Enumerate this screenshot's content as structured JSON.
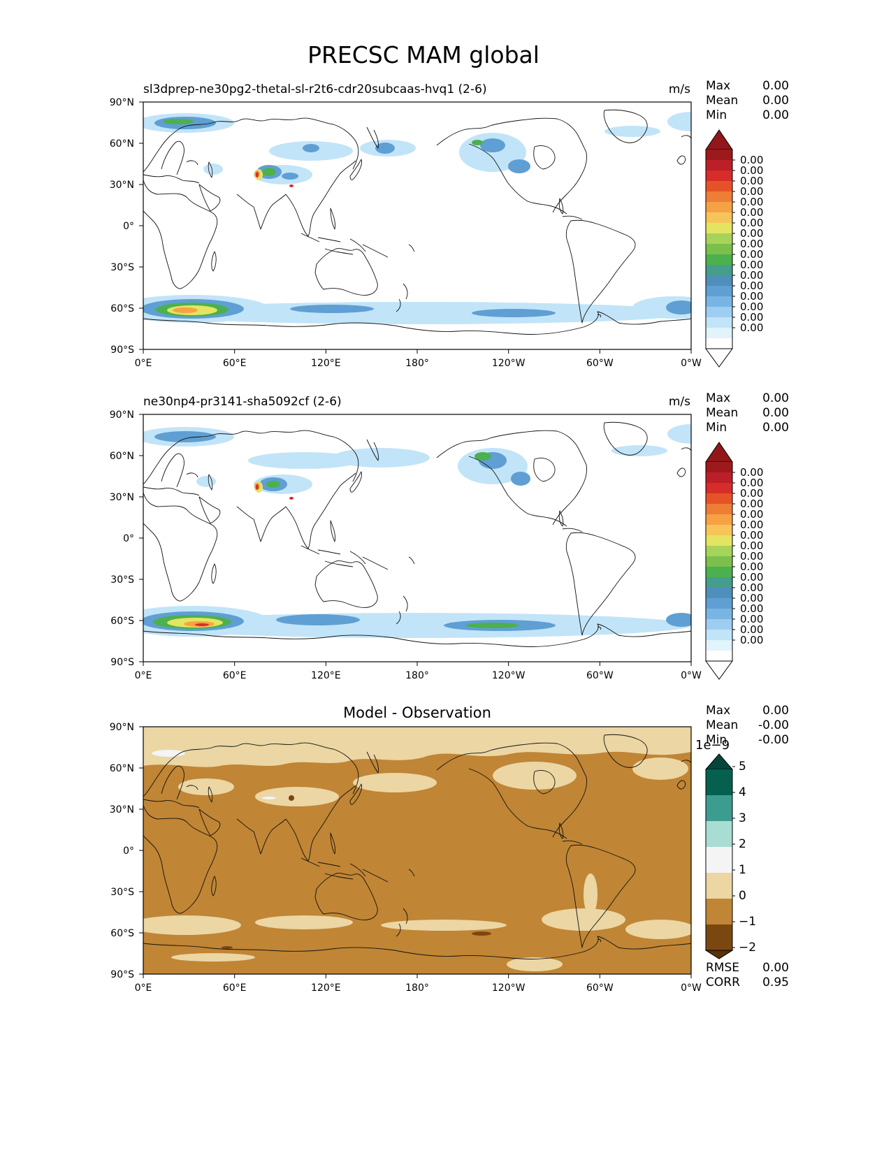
{
  "figure": {
    "title": "PRECSC MAM global"
  },
  "axis_labels": {
    "lat": [
      "90°N",
      "60°N",
      "30°N",
      "0°",
      "30°S",
      "60°S",
      "90°S"
    ],
    "lon": [
      "0°E",
      "60°E",
      "120°E",
      "180°",
      "120°W",
      "60°W",
      "0°W"
    ]
  },
  "panels": [
    {
      "id": "test",
      "title_left": "sl3dprep-ne30pg2-thetal-sl-r2t6-cdr20subcaas-hvq1 (2-6)",
      "title_right": "m/s",
      "stats": [
        {
          "label": "Max",
          "value": "0.00"
        },
        {
          "label": "Mean",
          "value": "0.00"
        },
        {
          "label": "Min",
          "value": "0.00"
        }
      ]
    },
    {
      "id": "reference",
      "title_left": "ne30np4-pr3141-sha5092cf (2-6)",
      "title_right": "m/s",
      "stats": [
        {
          "label": "Max",
          "value": "0.00"
        },
        {
          "label": "Mean",
          "value": "0.00"
        },
        {
          "label": "Min",
          "value": "0.00"
        }
      ]
    },
    {
      "id": "diff",
      "title_center": "Model - Observation",
      "stats": [
        {
          "label": "Max",
          "value": "0.00"
        },
        {
          "label": "Mean",
          "value": "-0.00"
        },
        {
          "label": "Min",
          "value": "-0.00"
        }
      ],
      "extra_stats": [
        {
          "label": "RMSE",
          "value": "0.00"
        },
        {
          "label": "CORR",
          "value": "0.95"
        }
      ]
    }
  ],
  "colorbars": {
    "precip": {
      "colors": [
        "#ffffff",
        "#e1f3fb",
        "#c2e4f8",
        "#9dcdf1",
        "#78b5e3",
        "#5f9fd3",
        "#4f8fb9",
        "#459d8c",
        "#4db04f",
        "#7bbf4c",
        "#a8d35a",
        "#e4e463",
        "#f6c55a",
        "#f6a244",
        "#ee7d36",
        "#e65228",
        "#d62c2a",
        "#bc1f27",
        "#9c1a1c"
      ],
      "extend_low": "#ffffff",
      "extend_high": "#931718",
      "labels": [
        "0.00",
        "0.00",
        "0.00",
        "0.00",
        "0.00",
        "0.00",
        "0.00",
        "0.00",
        "0.00",
        "0.00",
        "0.00",
        "0.00",
        "0.00",
        "0.00",
        "0.00",
        "0.00",
        "0.00"
      ]
    },
    "diff": {
      "colors": [
        "#7a4711",
        "#c08535",
        "#ebd6a4",
        "#f4f4f4",
        "#a8ddd3",
        "#3d9c90",
        "#066050"
      ],
      "extend_low": "#5b3208",
      "extend_high": "#03473b",
      "labels": [
        "−2",
        "−1",
        "0",
        "1",
        "2",
        "3",
        "4",
        "5"
      ],
      "scale": "1e−9"
    }
  },
  "map_colors": {
    "light_blue": "#c2e4f8",
    "mid_blue": "#5f9fd3",
    "green": "#4db04f",
    "yellow": "#e4e463",
    "red": "#d62c2a",
    "tan": "#c08535",
    "pale_tan": "#ebd6a4",
    "brown": "#7a4711"
  }
}
